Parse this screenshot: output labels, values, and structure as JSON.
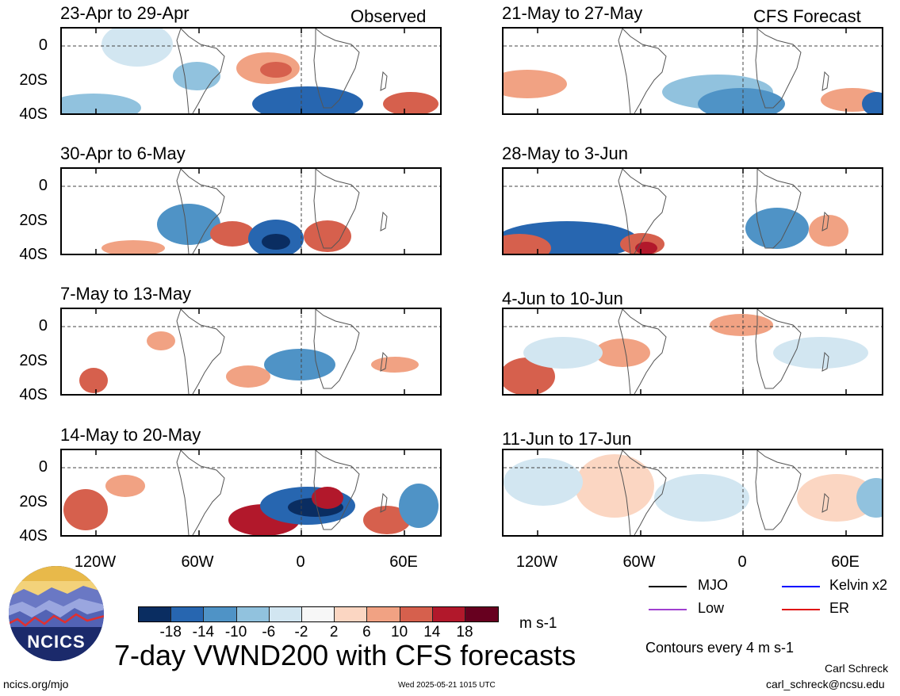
{
  "panels": [
    {
      "title": "23-Apr to 29-Apr",
      "tag": "Observed"
    },
    {
      "title": "30-Apr to 6-May",
      "tag": ""
    },
    {
      "title": "7-May to 13-May",
      "tag": ""
    },
    {
      "title": "14-May to 20-May",
      "tag": ""
    },
    {
      "title": "21-May to 27-May",
      "tag": "CFS Forecast"
    },
    {
      "title": "28-May to 3-Jun",
      "tag": ""
    },
    {
      "title": "4-Jun to 10-Jun",
      "tag": ""
    },
    {
      "title": "11-Jun to 17-Jun",
      "tag": ""
    }
  ],
  "axes": {
    "lat_labels": [
      "0",
      "20S",
      "40S"
    ],
    "lon_labels": [
      "120W",
      "60W",
      "0",
      "60E"
    ]
  },
  "colorbar": {
    "colors": [
      "#0a2d61",
      "#2766b0",
      "#4f93c6",
      "#91c2de",
      "#d2e6f1",
      "#f7f7f7",
      "#fbd6c2",
      "#f1a283",
      "#d6604d",
      "#b2182b",
      "#67001f"
    ],
    "labels": [
      "-18",
      "-14",
      "-10",
      "-6",
      "-2",
      "2",
      "6",
      "10",
      "14",
      "18"
    ],
    "units": "m s-1"
  },
  "legend": {
    "items": [
      {
        "label": "MJO",
        "color": "#000000"
      },
      {
        "label": "Kelvin x2",
        "color": "#0000ff"
      },
      {
        "label": "Low",
        "color": "#a040d0"
      },
      {
        "label": "ER",
        "color": "#e01010"
      }
    ],
    "contours_note": "Contours every 4 m s-1"
  },
  "footer": {
    "main_title": "7-day VWND200 with CFS forecasts",
    "logo_text": "NCICS",
    "site": "ncics.org/mjo",
    "timestamp": "Wed 2025-05-21 1015 UTC",
    "author": "Carl Schreck",
    "email": "carl_schreck@ncsu.edu"
  }
}
